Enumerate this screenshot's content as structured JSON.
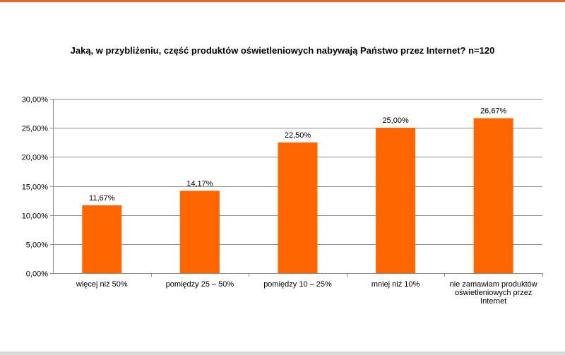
{
  "title": "Jaką, w przybliżeniu, część produktów oświetleniowych nabywają Państwo przez Internet? n=120",
  "colors": {
    "bar": "#ff6600",
    "grid": "#8c8c8c",
    "accent_rule": "#e8682a"
  },
  "chart_data": {
    "type": "bar",
    "title": "Jaką, w przybliżeniu, część produktów oświetleniowych nabywają Państwo przez Internet? n=120",
    "categories": [
      [
        "więcej niż 50%"
      ],
      [
        "pomiędzy 25 – 50%"
      ],
      [
        "pomiędzy 10 – 25%"
      ],
      [
        "mniej niż 10%"
      ],
      [
        "nie zamawiam produktów",
        "oświetleniowych przez",
        "Internet"
      ]
    ],
    "values": [
      11.67,
      14.17,
      22.5,
      25.0,
      26.67
    ],
    "value_labels": [
      "11,67%",
      "14,17%",
      "22,50%",
      "25,00%",
      "26,67%"
    ],
    "ylim": [
      0,
      30
    ],
    "yticks": [
      0,
      5,
      10,
      15,
      20,
      25,
      30
    ],
    "ytick_labels": [
      "0,00%",
      "5,00%",
      "10,00%",
      "15,00%",
      "20,00%",
      "25,00%",
      "30,00%"
    ],
    "grid": true,
    "legend": "none",
    "xlabel": "",
    "ylabel": ""
  }
}
